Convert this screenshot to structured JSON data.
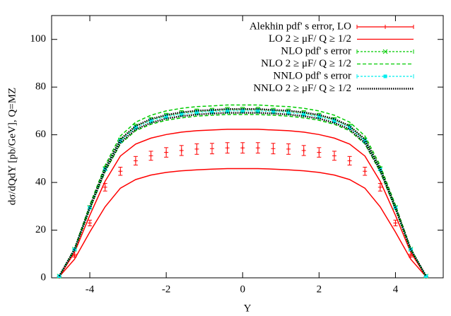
{
  "chart_data": {
    "type": "line",
    "xlabel": "Y",
    "ylabel": "dσ/dQdY [pb/GeV], Q=MZ",
    "xlim": [
      -5,
      5.25
    ],
    "ylim": [
      0,
      110
    ],
    "xticks": [
      -4,
      -2,
      0,
      2,
      4
    ],
    "yticks": [
      0,
      20,
      40,
      60,
      80,
      100
    ],
    "legend": "top right",
    "x": [
      -4.8,
      -4.4,
      -4.0,
      -3.6,
      -3.2,
      -2.8,
      -2.4,
      -2.0,
      -1.6,
      -1.2,
      -0.8,
      -0.4,
      0,
      0.4,
      0.8,
      1.2,
      1.6,
      2.0,
      2.4,
      2.8,
      3.2,
      3.6,
      4.0,
      4.4,
      4.8
    ],
    "series": [
      {
        "name": "Alekhin pdf' s error, LO",
        "color": "#ff0000",
        "style": "errorbars",
        "marker": "plus",
        "connect": false,
        "values": [
          0.5,
          9.3,
          23,
          38,
          44.7,
          49.1,
          51.2,
          52.6,
          53.4,
          54.0,
          54.2,
          54.5,
          54.5,
          54.5,
          54.2,
          54.0,
          53.4,
          52.6,
          51.2,
          49.1,
          44.7,
          38,
          23,
          9.3,
          0.5
        ],
        "errors": [
          0.1,
          0.6,
          1.2,
          1.6,
          1.7,
          1.8,
          1.9,
          2.0,
          2.1,
          2.2,
          2.2,
          2.2,
          2.2,
          2.2,
          2.2,
          2.2,
          2.1,
          2.0,
          1.9,
          1.8,
          1.7,
          1.6,
          1.2,
          0.6,
          0.1
        ]
      },
      {
        "name": "LO  2 ≥ μF/ Q ≥ 1/2",
        "color": "#ff0000",
        "style": "band",
        "dash": "none",
        "upper": [
          0.6,
          10.6,
          26.2,
          40.5,
          51.1,
          56.1,
          58.6,
          60.1,
          61.1,
          61.7,
          62.0,
          62.3,
          62.3,
          62.3,
          62.0,
          61.7,
          61.1,
          60.1,
          58.6,
          56.1,
          51.1,
          40.5,
          26.2,
          10.6,
          0.6
        ],
        "lower": [
          0.5,
          7.8,
          19.2,
          29.8,
          37.6,
          41.2,
          43.1,
          44.2,
          44.9,
          45.3,
          45.6,
          45.8,
          45.8,
          45.8,
          45.6,
          45.3,
          44.9,
          44.2,
          43.1,
          41.2,
          37.6,
          29.8,
          19.2,
          7.8,
          0.5
        ]
      },
      {
        "name": "NLO pdf' s error",
        "color": "#00cc00",
        "style": "errorbars",
        "marker": "x",
        "connect": true,
        "dash": "3,2",
        "values": [
          0.7,
          12.0,
          29.6,
          45.8,
          57.8,
          63.5,
          66.3,
          68.0,
          69.1,
          69.8,
          70.1,
          70.5,
          70.5,
          70.5,
          70.1,
          69.8,
          69.1,
          68.0,
          66.3,
          63.5,
          57.8,
          45.8,
          29.6,
          12.0,
          0.7
        ],
        "errors": [
          0,
          0.2,
          0.5,
          0.7,
          0.8,
          0.9,
          0.9,
          1,
          1,
          1,
          1,
          1,
          1,
          1,
          1,
          1,
          1,
          1,
          0.9,
          0.9,
          0.8,
          0.7,
          0.5,
          0.2,
          0
        ]
      },
      {
        "name": "NLO  2 ≥ μF/ Q ≥ 1/2",
        "color": "#00cc00",
        "style": "band",
        "dash": "5,3",
        "upper": [
          0.7,
          12.3,
          30.5,
          47.1,
          59.5,
          65.3,
          68.2,
          70.0,
          71.1,
          71.8,
          72.1,
          72.5,
          72.5,
          72.5,
          72.1,
          71.8,
          71.1,
          70.0,
          68.2,
          65.3,
          59.5,
          47.1,
          30.5,
          12.3,
          0.7
        ],
        "lower": [
          0.7,
          11.6,
          28.8,
          44.5,
          56.2,
          61.7,
          64.4,
          66.1,
          67.1,
          67.8,
          68.2,
          68.5,
          68.5,
          68.5,
          68.2,
          67.8,
          67.1,
          66.1,
          64.4,
          61.7,
          56.2,
          44.5,
          28.8,
          11.6,
          0.7
        ]
      },
      {
        "name": "NNLO pdf' s error",
        "color": "#00eeee",
        "style": "errorbars",
        "marker": "square",
        "connect": true,
        "dash": "3,2",
        "values": [
          0.7,
          11.9,
          29.4,
          45.5,
          57.4,
          63.0,
          65.8,
          67.6,
          68.6,
          69.3,
          69.7,
          70.0,
          70.0,
          70.0,
          69.7,
          69.3,
          68.6,
          67.6,
          65.8,
          63.0,
          57.4,
          45.5,
          29.4,
          11.9,
          0.7
        ],
        "errors": [
          0,
          0.2,
          0.4,
          0.6,
          0.7,
          0.7,
          0.8,
          0.8,
          0.8,
          0.8,
          0.8,
          0.8,
          0.8,
          0.8,
          0.8,
          0.8,
          0.8,
          0.8,
          0.8,
          0.7,
          0.7,
          0.6,
          0.4,
          0.2,
          0
        ]
      },
      {
        "name": "NNLO  2 ≥ μF/ Q ≥ 1/2",
        "color": "#000000",
        "style": "band",
        "dash": "1.5,1.5",
        "upper": [
          0.7,
          12.0,
          29.7,
          46.0,
          58.1,
          63.7,
          66.6,
          68.3,
          69.4,
          70.1,
          70.4,
          70.8,
          70.8,
          70.8,
          70.4,
          70.1,
          69.4,
          68.3,
          66.6,
          63.7,
          58.1,
          46.0,
          29.7,
          12.0,
          0.7
        ],
        "lower": [
          0.7,
          11.8,
          29.1,
          45.0,
          56.7,
          62.3,
          65.0,
          66.8,
          67.8,
          68.5,
          68.9,
          69.2,
          69.2,
          69.2,
          68.9,
          68.5,
          67.8,
          66.8,
          65.0,
          62.3,
          56.7,
          45.0,
          29.1,
          11.8,
          0.7
        ]
      }
    ]
  }
}
